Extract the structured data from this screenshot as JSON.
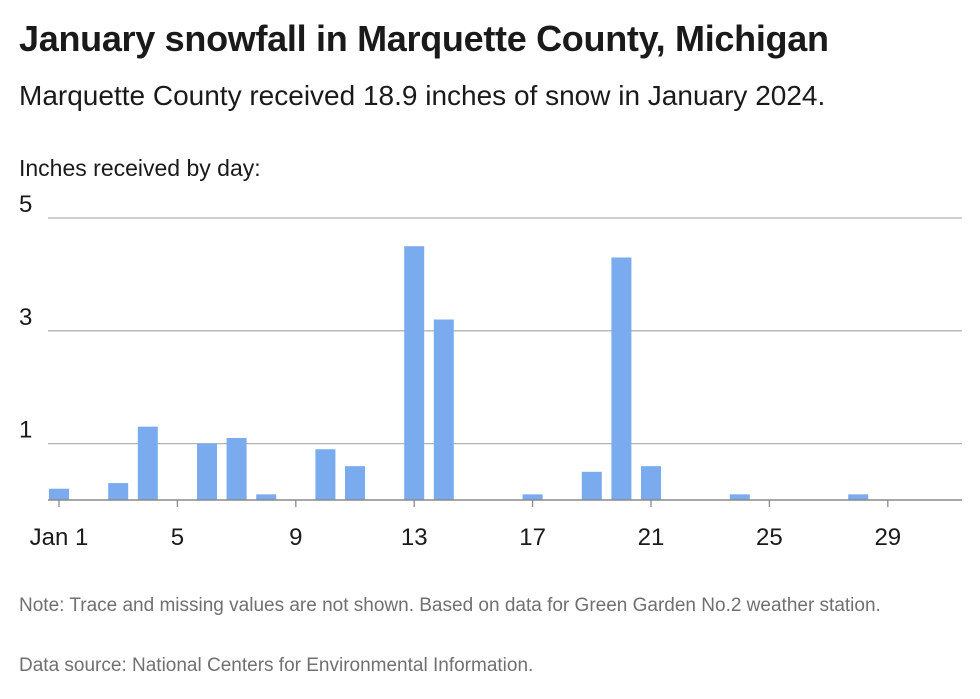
{
  "header": {
    "title": "January snowfall in Marquette County, Michigan",
    "subtitle": "Marquette County received 18.9 inches of snow in January 2024."
  },
  "footer": {
    "note": "Note: Trace and missing values are not shown. Based on data for Green Garden No.2 weather station.",
    "source": "Data source: National Centers for Environmental Information."
  },
  "colors": {
    "bar": "#7aabee",
    "grid": "#b3b3b3",
    "baseline": "#8a8a8a",
    "text": "#1a1a1a",
    "muted": "#707070"
  },
  "chart_data": {
    "type": "bar",
    "ylabel": "Inches received by day:",
    "xlabel": "",
    "ylim": [
      0,
      5
    ],
    "y_ticks": [
      1,
      3,
      5
    ],
    "x_ticks": [
      {
        "day": 1,
        "label": "Jan 1"
      },
      {
        "day": 5,
        "label": "5"
      },
      {
        "day": 9,
        "label": "9"
      },
      {
        "day": 13,
        "label": "13"
      },
      {
        "day": 17,
        "label": "17"
      },
      {
        "day": 21,
        "label": "21"
      },
      {
        "day": 25,
        "label": "25"
      },
      {
        "day": 29,
        "label": "29"
      }
    ],
    "categories": [
      1,
      2,
      3,
      4,
      5,
      6,
      7,
      8,
      9,
      10,
      11,
      12,
      13,
      14,
      15,
      16,
      17,
      18,
      19,
      20,
      21,
      22,
      23,
      24,
      25,
      26,
      27,
      28,
      29,
      30,
      31
    ],
    "values": [
      0.2,
      0,
      0.3,
      1.3,
      0,
      1.0,
      1.1,
      0.1,
      0,
      0.9,
      0.6,
      0,
      4.5,
      3.2,
      0,
      0,
      0.1,
      0,
      0.5,
      4.3,
      0.6,
      0,
      0,
      0.1,
      0,
      0,
      0,
      0.1,
      0,
      0,
      0
    ],
    "grid": true,
    "legend": "none"
  }
}
